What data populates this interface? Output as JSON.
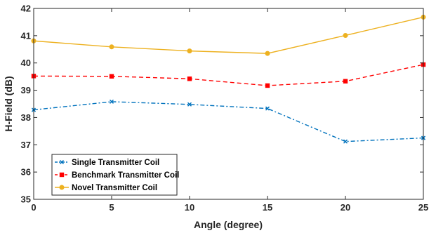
{
  "chart_data": {
    "type": "line",
    "title": "",
    "xlabel": "Angle (degree)",
    "ylabel": "H-Field (dB)",
    "x": [
      0,
      5,
      10,
      15,
      20,
      25
    ],
    "xlim": [
      0,
      25
    ],
    "ylim": [
      35,
      42
    ],
    "xticks": [
      "0",
      "5",
      "10",
      "15",
      "20",
      "25"
    ],
    "yticks": [
      "35",
      "36",
      "37",
      "38",
      "39",
      "40",
      "41",
      "42"
    ],
    "grid": false,
    "legend_position": "bottom-left",
    "series": [
      {
        "name": "Single Transmitter Coil",
        "values": [
          38.28,
          38.58,
          38.48,
          38.33,
          37.12,
          37.25
        ],
        "color": "#0072BD",
        "line_style": "dash-dot",
        "marker": "x"
      },
      {
        "name": "Benchmark Transmitter Coil",
        "values": [
          39.52,
          39.51,
          39.42,
          39.17,
          39.33,
          39.94
        ],
        "color": "#FF0000",
        "line_style": "dashed",
        "marker": "square"
      },
      {
        "name": "Novel Transmitter Coil",
        "values": [
          40.81,
          40.59,
          40.44,
          40.35,
          41.01,
          41.68
        ],
        "color": "#EDB120",
        "line_style": "solid",
        "marker": "circle"
      }
    ]
  }
}
